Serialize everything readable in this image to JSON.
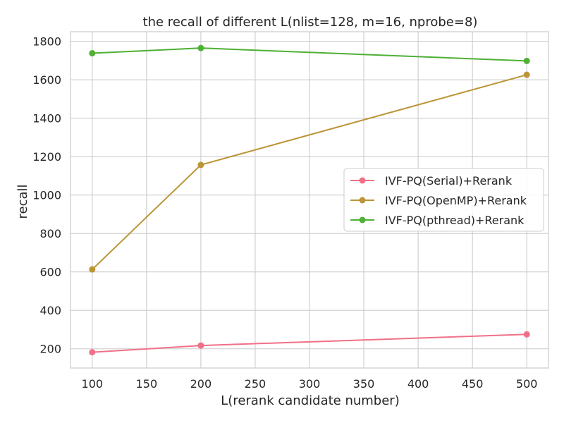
{
  "chart_data": {
    "type": "line",
    "title": "the recall of different L(nlist=128, m=16, nprobe=8)",
    "xlabel": "L(rerank candidate number)",
    "ylabel": "recall",
    "x": [
      100,
      200,
      500
    ],
    "xlim": [
      80,
      520
    ],
    "ylim": [
      100,
      1850
    ],
    "xticks": [
      100,
      150,
      200,
      250,
      300,
      350,
      400,
      450,
      500
    ],
    "yticks": [
      200,
      400,
      600,
      800,
      1000,
      1200,
      1400,
      1600,
      1800
    ],
    "grid": true,
    "legend_position": "center-right",
    "series": [
      {
        "name": "IVF-PQ(Serial)+Rerank",
        "color": "#f07087",
        "values": [
          182,
          217,
          275
        ]
      },
      {
        "name": "IVF-PQ(OpenMP)+Rerank",
        "color": "#bb9537",
        "values": [
          613,
          1157,
          1626
        ]
      },
      {
        "name": "IVF-PQ(pthread)+Rerank",
        "color": "#4eb034",
        "values": [
          1738,
          1765,
          1698
        ]
      }
    ]
  }
}
